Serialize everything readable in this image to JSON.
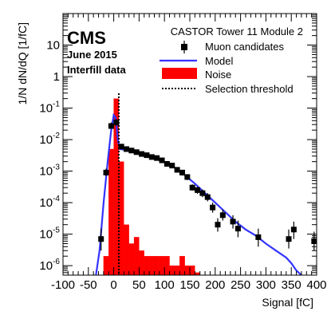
{
  "chart_data": {
    "type": "bar",
    "experiment": "CMS",
    "date": "June 2015",
    "run": "Interfill data",
    "title": "CASTOR Tower 11 Module 2",
    "xlabel": "Signal [fC]",
    "ylabel": "1/N dN/dQ [1/fC]",
    "xlim": [
      -100,
      400
    ],
    "ylim": [
      5e-07,
      100
    ],
    "yscale": "log",
    "grid": false,
    "legend_position": "top-right",
    "x_ticks": [
      "-100",
      "-50",
      "0",
      "50",
      "100",
      "150",
      "200",
      "250",
      "300",
      "350",
      "400"
    ],
    "y_ticks": [
      "10^{-6}",
      "10^{-5}",
      "10^{-4}",
      "10^{-3}",
      "10^{-2}",
      "10^{-1}",
      "1",
      "10"
    ],
    "threshold_x": 10,
    "series": [
      {
        "name": "Noise",
        "kind": "histogram",
        "color": "#ff0000",
        "bin_width": 10,
        "bins": [
          [
            -30,
            5e-07
          ],
          [
            -20,
            2e-06
          ],
          [
            -10,
            0.005
          ],
          [
            0,
            0.2
          ],
          [
            10,
            0.002
          ],
          [
            20,
            2e-05
          ],
          [
            30,
            5e-06
          ],
          [
            40,
            8e-06
          ],
          [
            50,
            3e-06
          ],
          [
            60,
            2e-06
          ],
          [
            70,
            2e-06
          ],
          [
            80,
            2e-06
          ],
          [
            90,
            2e-06
          ],
          [
            100,
            2e-06
          ],
          [
            110,
            1e-06
          ],
          [
            120,
            1e-06
          ],
          [
            130,
            2e-06
          ],
          [
            140,
            1e-06
          ],
          [
            150,
            1e-06
          ],
          [
            160,
            6e-07
          ],
          [
            170,
            5e-07
          ]
        ]
      },
      {
        "name": "Muon candidates",
        "kind": "points",
        "color": "#000000",
        "points": [
          [
            -25,
            7e-06,
            1.5e-05,
            3e-06
          ],
          [
            -15,
            0.0009,
            0.0012,
            0.0007
          ],
          [
            -5,
            0.027,
            0.035,
            0.022
          ],
          [
            5,
            0.035,
            0.045,
            0.028
          ],
          [
            15,
            0.006,
            0.007,
            0.005
          ],
          [
            25,
            0.005,
            0.006,
            0.0043
          ],
          [
            35,
            0.0045,
            0.0052,
            0.0039
          ],
          [
            45,
            0.004,
            0.0046,
            0.0035
          ],
          [
            55,
            0.0035,
            0.004,
            0.003
          ],
          [
            65,
            0.0032,
            0.0037,
            0.0028
          ],
          [
            75,
            0.0028,
            0.0033,
            0.0024
          ],
          [
            85,
            0.0026,
            0.003,
            0.0022
          ],
          [
            95,
            0.0022,
            0.0026,
            0.0019
          ],
          [
            105,
            0.0017,
            0.002,
            0.0014
          ],
          [
            115,
            0.0015,
            0.0018,
            0.00125
          ],
          [
            125,
            0.0011,
            0.00135,
            0.0009
          ],
          [
            135,
            0.0009,
            0.0011,
            0.00072
          ],
          [
            145,
            0.00065,
            0.0008,
            0.00052
          ],
          [
            155,
            0.0003,
            0.00038,
            0.00024
          ],
          [
            165,
            0.00025,
            0.00032,
            0.00019
          ],
          [
            175,
            0.0002,
            0.00026,
            0.00015
          ],
          [
            185,
            0.00015,
            0.0002,
            0.00011
          ],
          [
            195,
            7e-05,
            0.0001,
            4.8e-05
          ],
          [
            205,
            2e-05,
            3.2e-05,
            1.2e-05
          ],
          [
            215,
            4e-05,
            6e-05,
            2.7e-05
          ],
          [
            235,
            2.5e-05,
            4e-05,
            1.5e-05
          ],
          [
            245,
            1.5e-05,
            2.7e-05,
            8e-06
          ],
          [
            285,
            8e-06,
            1.5e-05,
            4e-06
          ],
          [
            345,
            7e-06,
            1.4e-05,
            3.5e-06
          ],
          [
            355,
            1.4e-05,
            2.5e-05,
            7e-06
          ],
          [
            395,
            6e-06,
            1.2e-05,
            3e-06
          ]
        ]
      },
      {
        "name": "Model",
        "kind": "line",
        "color": "#3333ff",
        "points": [
          [
            -35,
            5e-07
          ],
          [
            -28,
            3e-06
          ],
          [
            -20,
            0.0001
          ],
          [
            -12,
            0.002
          ],
          [
            -5,
            0.02
          ],
          [
            0,
            0.06
          ],
          [
            4,
            0.05
          ],
          [
            8,
            0.01
          ],
          [
            12,
            0.005
          ],
          [
            20,
            0.0048
          ],
          [
            40,
            0.004
          ],
          [
            60,
            0.0033
          ],
          [
            80,
            0.0026
          ],
          [
            100,
            0.0019
          ],
          [
            120,
            0.0013
          ],
          [
            140,
            0.00075
          ],
          [
            160,
            0.0004
          ],
          [
            180,
            0.0002
          ],
          [
            200,
            0.0001
          ],
          [
            220,
            5e-05
          ],
          [
            240,
            2.5e-05
          ],
          [
            260,
            1.4e-05
          ],
          [
            280,
            9e-06
          ],
          [
            300,
            5e-06
          ],
          [
            320,
            3e-06
          ],
          [
            340,
            1.8e-06
          ],
          [
            350,
            1.2e-06
          ],
          [
            360,
            7e-07
          ],
          [
            370,
            5e-07
          ]
        ]
      }
    ],
    "legend": [
      "Muon candidates",
      "Model",
      "Noise",
      "Selection threshold"
    ]
  }
}
